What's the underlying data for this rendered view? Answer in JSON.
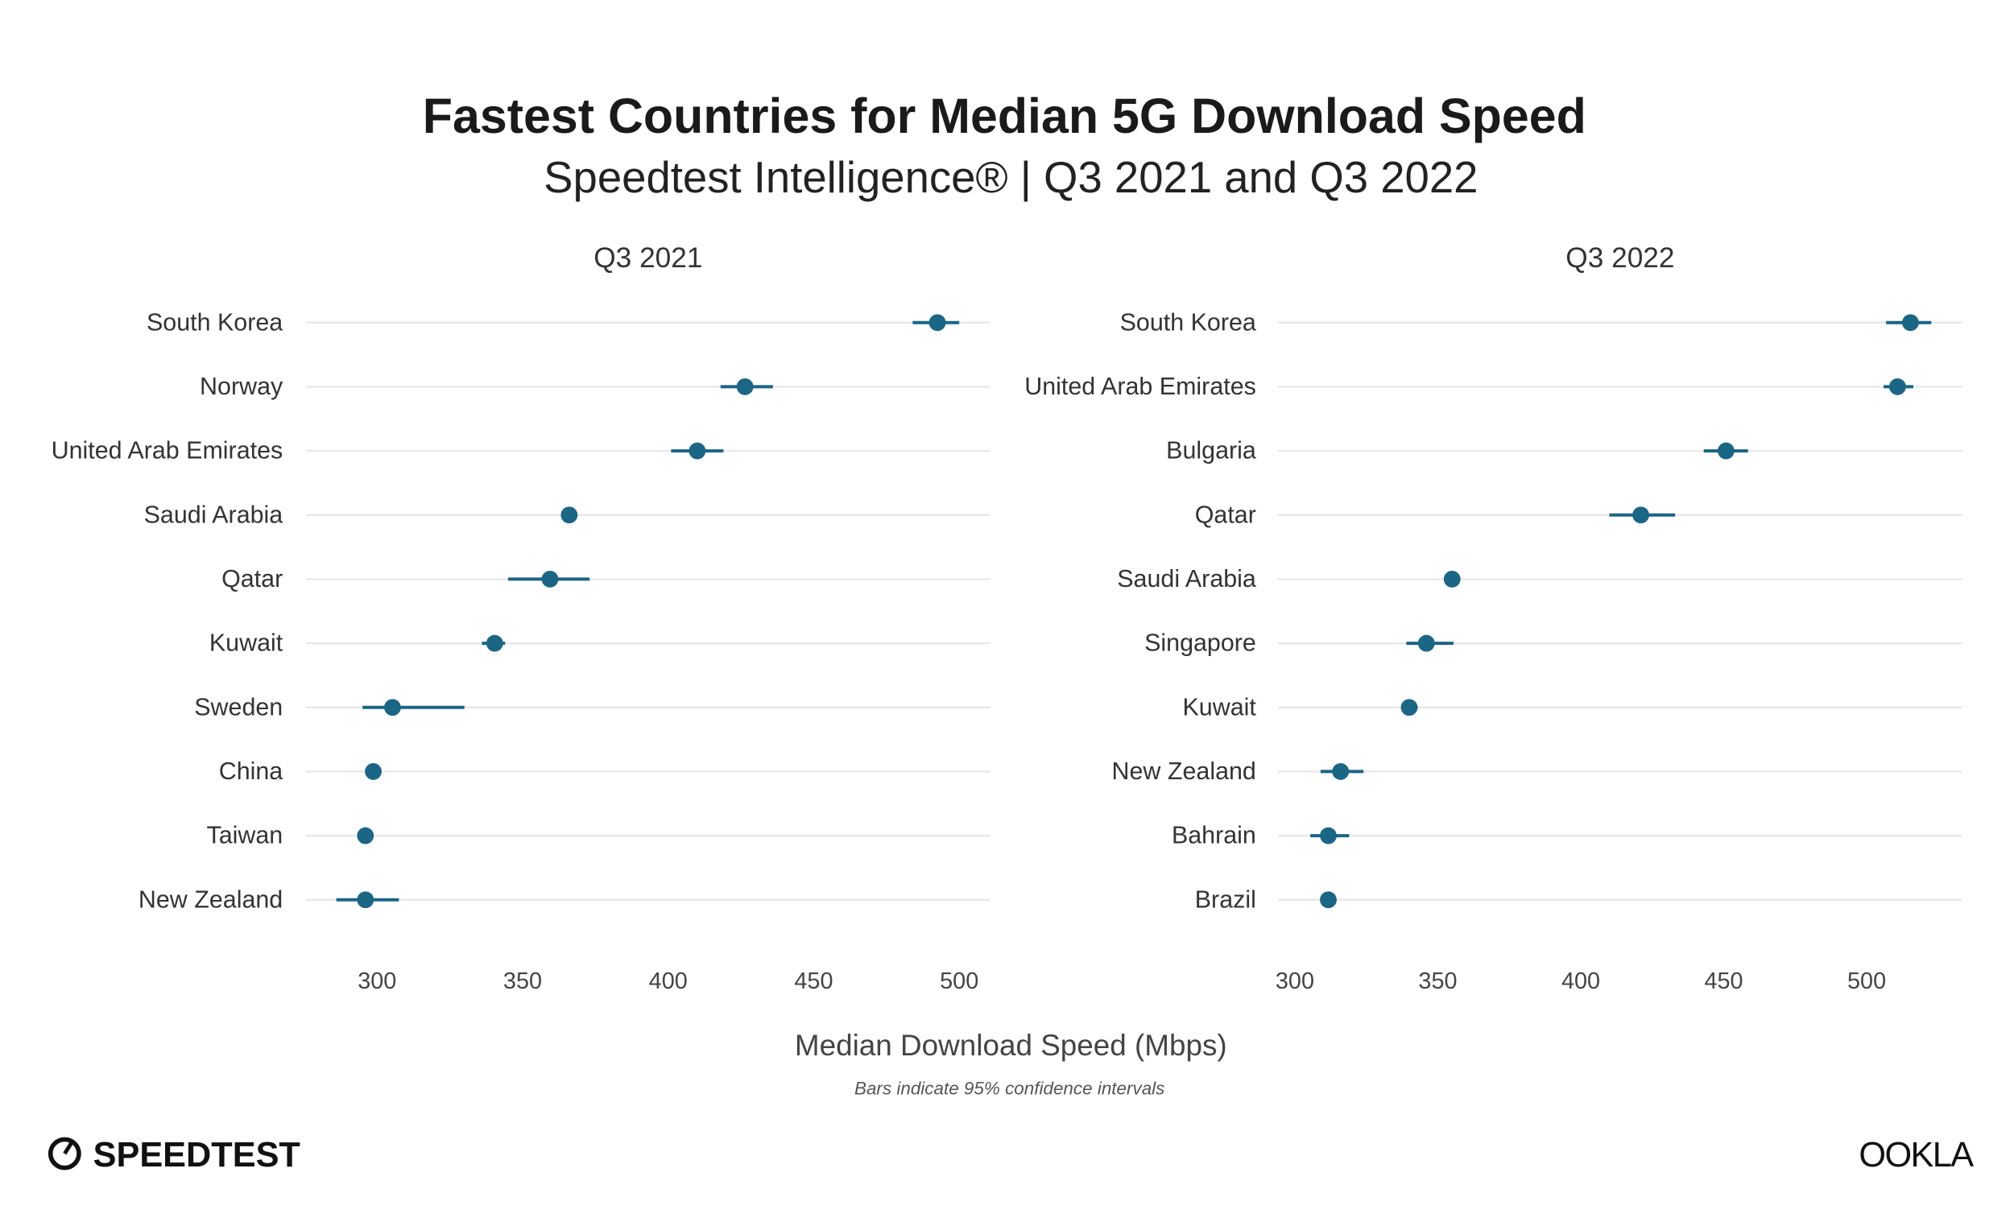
{
  "title": "Fastest Countries for Median 5G Download Speed",
  "subtitle": "Speedtest Intelligence® | Q3 2021 and Q3 2022",
  "footer": {
    "left_logo": "SPEEDTEST",
    "right_logo": "OOKLA"
  },
  "colors": {
    "point": "#1b6585",
    "grid": "#e8e8e8"
  },
  "chart_data": [
    {
      "type": "scatter",
      "title": "Q3 2021",
      "xlabel": "Median Download Speed (Mbps)",
      "note": "Bars indicate 95% confidence intervals",
      "xlim": [
        275,
        510
      ],
      "xticks": [
        300,
        350,
        400,
        450,
        500
      ],
      "grid": true,
      "categories": [
        "South Korea",
        "Norway",
        "United Arab Emirates",
        "Saudi Arabia",
        "Qatar",
        "Kuwait",
        "Sweden",
        "China",
        "Taiwan",
        "New Zealand"
      ],
      "values": [
        492.5,
        426.4,
        410.0,
        366.0,
        359.4,
        340.4,
        305.3,
        298.7,
        296.0,
        296.0
      ],
      "ci_low": [
        484,
        418,
        401,
        365,
        345,
        336,
        295,
        298,
        295.5,
        286
      ],
      "ci_high": [
        500,
        436,
        419,
        367,
        373,
        344,
        330,
        299.5,
        296.5,
        307.5
      ]
    },
    {
      "type": "scatter",
      "title": "Q3 2022",
      "xlabel": "Median Download Speed (Mbps)",
      "xlim": [
        290,
        532
      ],
      "xticks": [
        300,
        350,
        400,
        450,
        500
      ],
      "grid": true,
      "categories": [
        "South Korea",
        "United Arab Emirates",
        "Bulgaria",
        "Qatar",
        "Saudi Arabia",
        "Singapore",
        "Kuwait",
        "New Zealand",
        "Bahrain",
        "Brazil"
      ],
      "values": [
        515.3,
        510.8,
        450.8,
        421.0,
        355.0,
        346.0,
        340.0,
        316.0,
        311.7,
        311.7
      ],
      "ci_low": [
        506.8,
        505.9,
        443.0,
        410.0,
        354.5,
        339.0,
        337.5,
        309.0,
        305.4,
        311.2
      ],
      "ci_high": [
        522.6,
        516.3,
        458.5,
        433.0,
        355.5,
        355.5,
        343.0,
        324.0,
        319.0,
        312.2
      ]
    }
  ]
}
